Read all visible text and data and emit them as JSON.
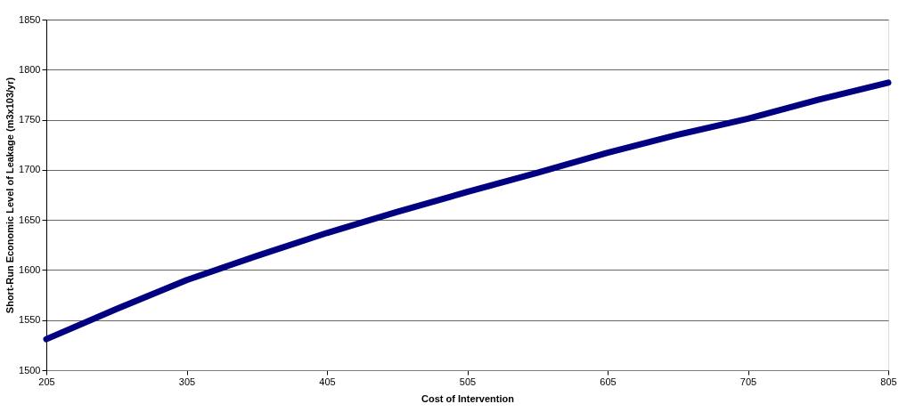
{
  "chart_data": {
    "type": "line",
    "xlabel": "Cost of Intervention",
    "ylabel": "Short-Run Economic Level of Leakage (m3x103/yr)",
    "x": [
      205,
      255,
      305,
      355,
      405,
      455,
      505,
      555,
      605,
      655,
      705,
      755,
      805
    ],
    "series": [
      {
        "color": "#000080",
        "values": [
          1531,
          1561,
          1590,
          1614,
          1637,
          1658,
          1678,
          1697,
          1717,
          1735,
          1751,
          1770,
          1787
        ]
      }
    ],
    "xlim": [
      205,
      805
    ],
    "xticks": [
      205,
      305,
      405,
      505,
      605,
      705,
      805
    ],
    "ylim": [
      1500,
      1850
    ],
    "yticks": [
      1500,
      1550,
      1600,
      1650,
      1700,
      1750,
      1800,
      1850
    ],
    "grid": "y",
    "marker": "none",
    "line_style": "solid"
  }
}
